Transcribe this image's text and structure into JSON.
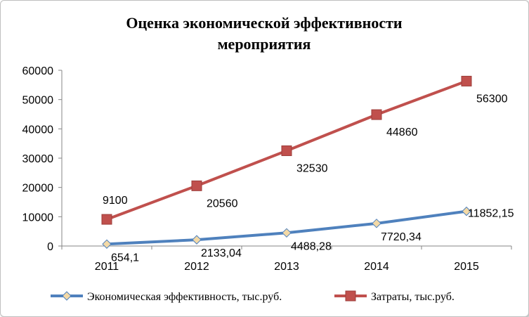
{
  "chart_data": {
    "type": "line",
    "title_line1": "Оценка экономической эффективности",
    "title_line2": "мероприятия",
    "categories": [
      "2011",
      "2012",
      "2013",
      "2014",
      "2015"
    ],
    "ylim": [
      0,
      60000
    ],
    "yticks": [
      "0",
      "10000",
      "20000",
      "30000",
      "40000",
      "50000",
      "60000"
    ],
    "grid": false,
    "legend_position": "bottom",
    "series": [
      {
        "name": "Экономическая эффективность, тыс.руб.",
        "values": [
          654.1,
          2133.04,
          4488.28,
          7720.34,
          11852.15
        ],
        "labels": [
          "654,1",
          "2133,04",
          "4488,28",
          "7720,34",
          "11852,15"
        ],
        "color": "#4f81bd",
        "marker": "diamond",
        "marker_color": "#f3d9a6"
      },
      {
        "name": "Затраты, тыс.руб.",
        "values": [
          9100,
          20560,
          32530,
          44860,
          56300
        ],
        "labels": [
          "9100",
          "20560",
          "32530",
          "44860",
          "56300"
        ],
        "color": "#c0504d",
        "marker": "square",
        "marker_color": "#c0504d"
      }
    ]
  }
}
